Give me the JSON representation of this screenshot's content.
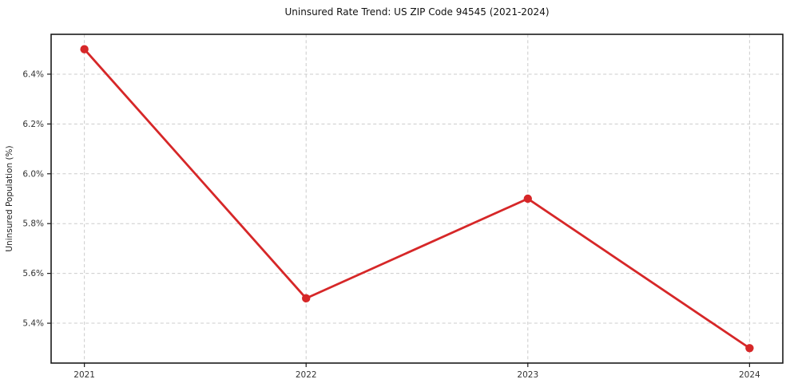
{
  "chart_data": {
    "type": "line",
    "title": "Uninsured Rate Trend: US ZIP Code 94545 (2021-2024)",
    "xlabel": "",
    "ylabel": "Uninsured Population (%)",
    "x": [
      2021,
      2022,
      2023,
      2024
    ],
    "values": [
      6.5,
      5.5,
      5.9,
      5.3
    ],
    "x_tick_labels": [
      "2021",
      "2022",
      "2023",
      "2024"
    ],
    "y_ticks": [
      5.4,
      5.6,
      5.8,
      6.0,
      6.2,
      6.4
    ],
    "y_tick_labels": [
      "5.4%",
      "5.6%",
      "5.8%",
      "6.0%",
      "6.2%",
      "6.4%"
    ],
    "xlim": [
      2020.85,
      2024.15
    ],
    "ylim": [
      5.24,
      6.56
    ],
    "grid": true,
    "grid_style": "dashed",
    "legend_position": "none",
    "colors": {
      "line": "#d62728",
      "marker": "#d62728",
      "grid": "#cccccc",
      "spine": "#1a1a1a",
      "tick_text": "#333333"
    }
  }
}
